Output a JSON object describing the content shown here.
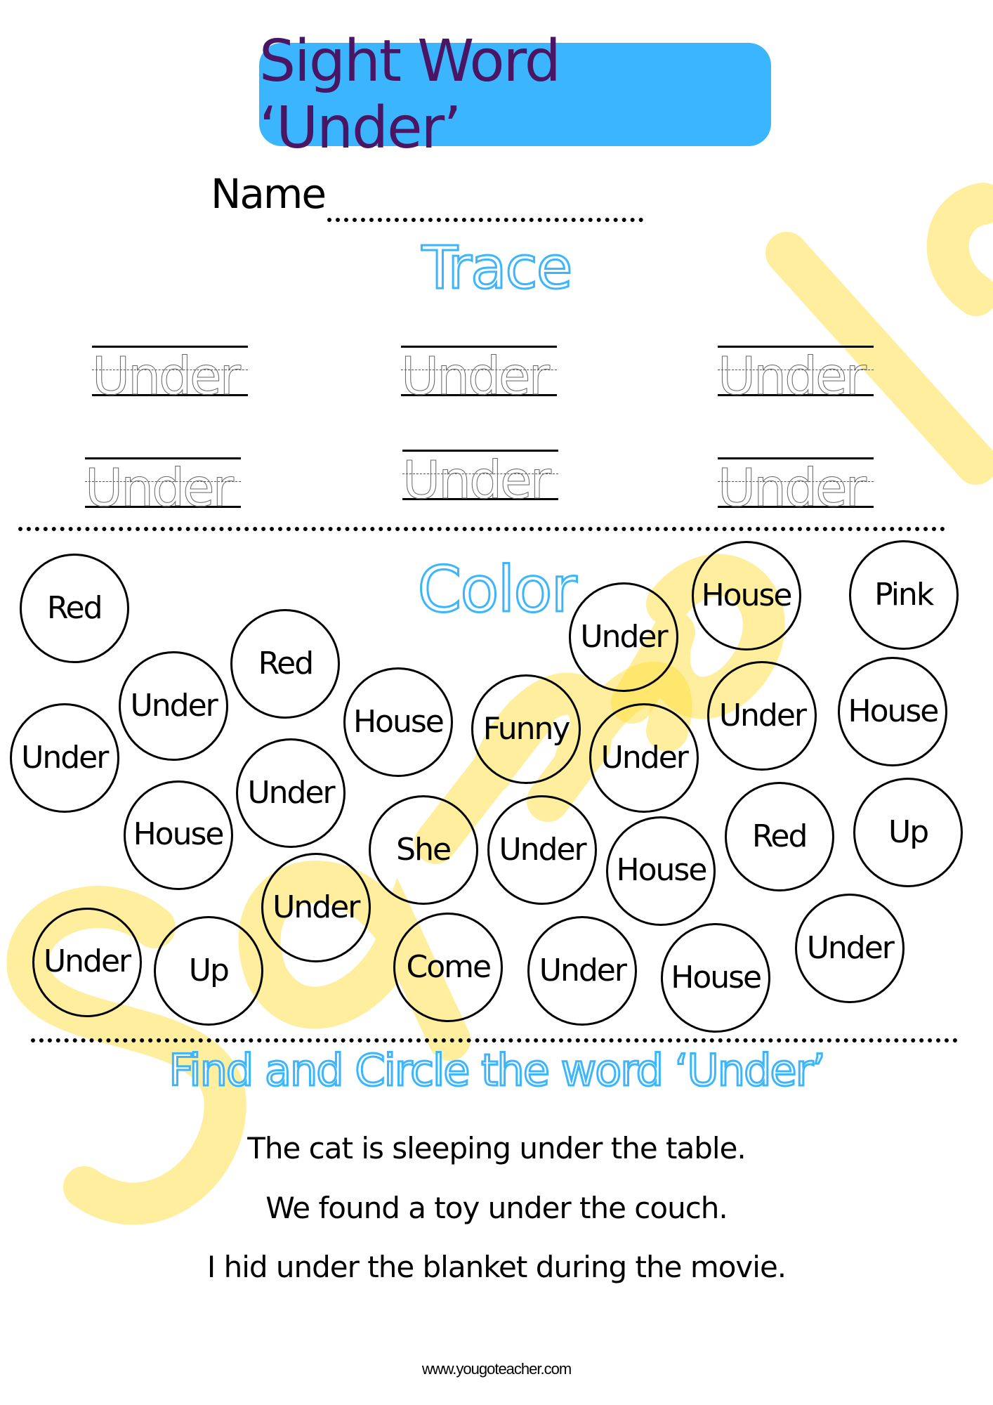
{
  "title": "Sight Word ‘Under’",
  "name_label": "Name",
  "colors": {
    "title_box": "#3bb5fd",
    "title_text": "#4a1663",
    "heading_outline": "#3bb5fd",
    "watermark": "#ffdd3c"
  },
  "trace": {
    "heading": "Trace",
    "words": [
      "Under",
      "Under",
      "Under",
      "Under",
      "Under",
      "Under"
    ]
  },
  "color_section": {
    "heading": "Color",
    "circles": [
      "Red",
      "Under",
      "Red",
      "Under",
      "House",
      "Under",
      "House",
      "Funny",
      "Under",
      "House",
      "Pink",
      "Under",
      "Under",
      "House",
      "She",
      "Under",
      "House",
      "Red",
      "Up",
      "Under",
      "Under",
      "Up",
      "Come",
      "Under",
      "House",
      "Under"
    ]
  },
  "find_section": {
    "heading": "Find and Circle the word ‘Under’",
    "sentences": [
      "The cat is sleeping under the table.",
      "We found a toy under the couch.",
      "I hid under the blanket during the movie."
    ]
  },
  "watermark": "Sample",
  "footer": "www.yougoteacher.com"
}
